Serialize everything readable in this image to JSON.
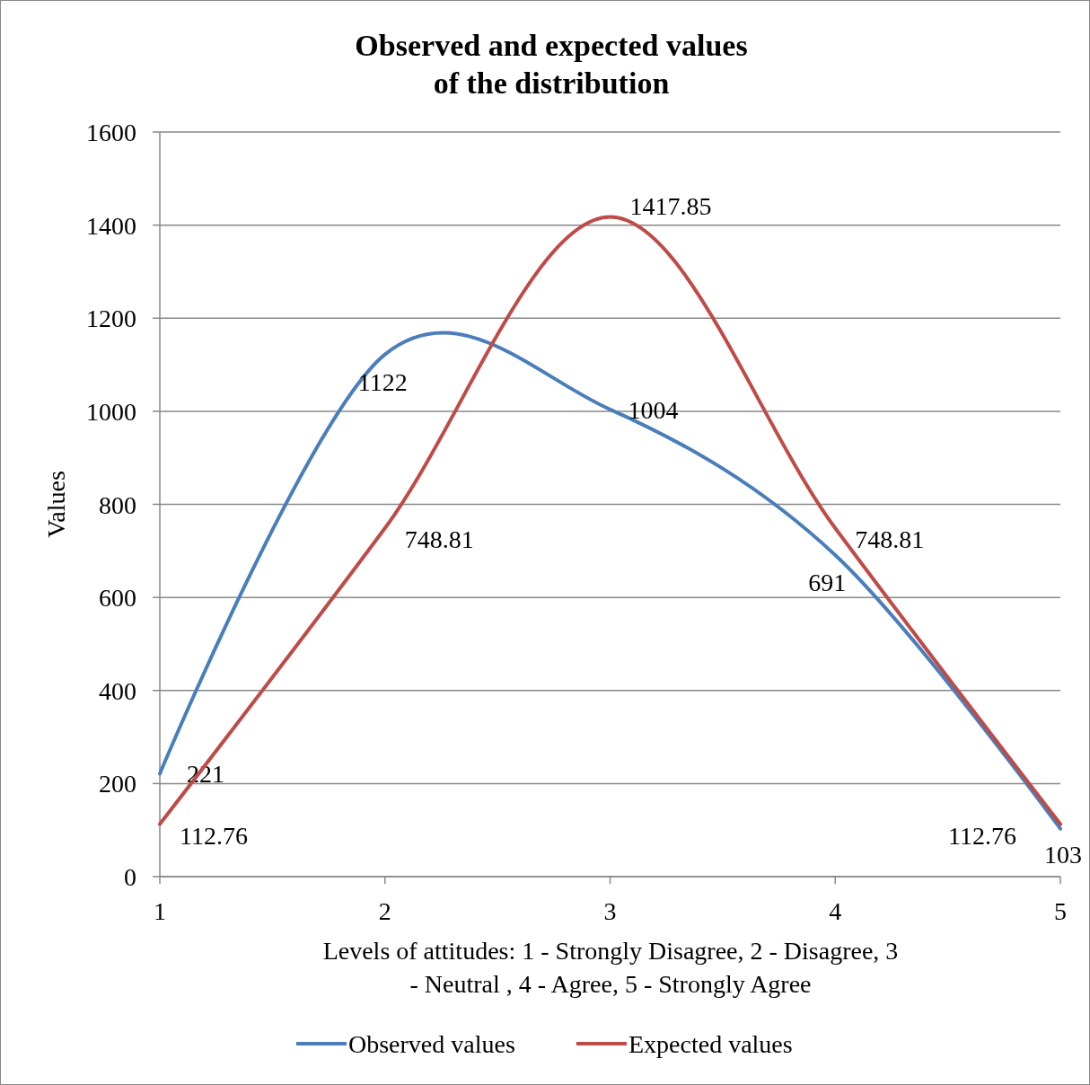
{
  "chart_data": {
    "type": "line",
    "title": "Observed and expected values of the distribution",
    "xlabel": "Levels of attitudes: 1 - Strongly Disagree, 2 - Disagree, 3 - Neutral , 4 - Agree, 5 - Strongly Agree",
    "ylabel": "Values",
    "x": [
      1,
      2,
      3,
      4,
      5
    ],
    "series": [
      {
        "name": "Observed values",
        "color": "#4a7ebb",
        "values": [
          221,
          1122,
          1004,
          691,
          103
        ]
      },
      {
        "name": "Expected values",
        "color": "#be4b48",
        "values": [
          112.76,
          748.81,
          1417.85,
          748.81,
          112.76
        ]
      }
    ],
    "xlim": [
      1,
      5
    ],
    "xticks": [
      1,
      2,
      3,
      4,
      5
    ],
    "ylim": [
      0,
      1600
    ],
    "yticks": [
      0,
      200,
      400,
      600,
      800,
      1000,
      1200,
      1400,
      1600
    ],
    "grid": "y",
    "legend": "bottom",
    "marker": "none",
    "line_style": "solid",
    "data_labels": true
  }
}
